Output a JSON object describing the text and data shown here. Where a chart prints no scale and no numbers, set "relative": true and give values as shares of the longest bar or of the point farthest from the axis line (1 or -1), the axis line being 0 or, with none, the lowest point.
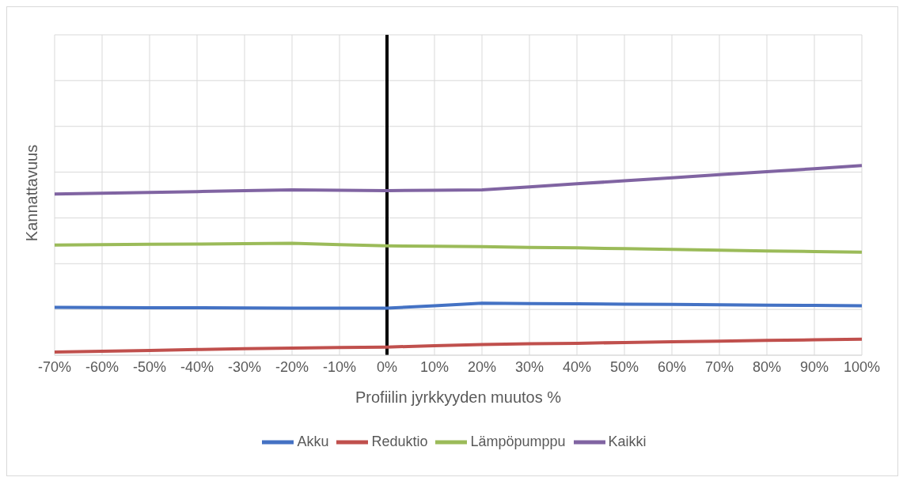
{
  "chart_data": {
    "type": "line",
    "xlabel": "Profiilin jyrkkyyden muutos %",
    "ylabel": "Kannattavuus",
    "relative": true,
    "grid": true,
    "legend": "bottom",
    "line_style": "solid",
    "marker": "none",
    "categories": [
      "-70%",
      "-60%",
      "-50%",
      "-40%",
      "-30%",
      "-20%",
      "-10%",
      "0%",
      "10%",
      "20%",
      "30%",
      "40%",
      "50%",
      "60%",
      "70%",
      "80%",
      "90%",
      "100%"
    ],
    "ref_lines": [
      {
        "axis": "x",
        "value": "0%",
        "color": "#000000"
      }
    ],
    "series": [
      {
        "name": "Akku",
        "color": "#4472c4",
        "values": [
          0.252,
          0.251,
          0.25,
          0.25,
          0.249,
          0.248,
          0.248,
          0.248,
          0.261,
          0.274,
          0.272,
          0.271,
          0.269,
          0.268,
          0.266,
          0.264,
          0.263,
          0.261
        ]
      },
      {
        "name": "Reduktio",
        "color": "#c0504d",
        "values": [
          0.017,
          0.021,
          0.025,
          0.03,
          0.034,
          0.038,
          0.041,
          0.043,
          0.05,
          0.056,
          0.06,
          0.063,
          0.067,
          0.071,
          0.074,
          0.078,
          0.081,
          0.085
        ]
      },
      {
        "name": "Lämpöpumppu",
        "color": "#9bbb59",
        "values": [
          0.581,
          0.583,
          0.585,
          0.586,
          0.588,
          0.59,
          0.583,
          0.577,
          0.575,
          0.573,
          0.569,
          0.566,
          0.562,
          0.558,
          0.554,
          0.55,
          0.547,
          0.543
        ]
      },
      {
        "name": "Kaikki",
        "color": "#8064a2",
        "values": [
          0.85,
          0.854,
          0.859,
          0.863,
          0.868,
          0.872,
          0.87,
          0.868,
          0.87,
          0.872,
          0.888,
          0.904,
          0.92,
          0.936,
          0.952,
          0.968,
          0.984,
          1.0
        ]
      }
    ]
  }
}
